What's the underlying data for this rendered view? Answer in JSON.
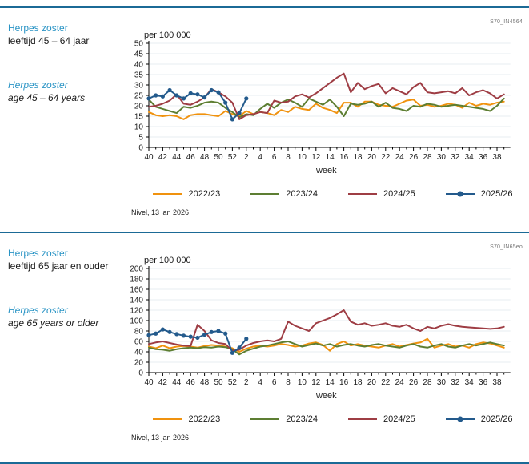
{
  "page": {
    "divider_color": "#1b6a96",
    "heading_color": "#2a94c5"
  },
  "sections": [
    {
      "title_nl": "Herpes zoster",
      "subtitle_nl": "leeftijd 45 – 64 jaar",
      "title_en": "Herpes zoster",
      "subtitle_en": "age 45 – 64 years",
      "code": "S70_IN4564",
      "source": "Nivel, 13 jan 2026",
      "chart_data": {
        "type": "line",
        "title": "per 100 000",
        "xlabel": "week",
        "ylim": [
          0,
          50
        ],
        "ytick_step": 5,
        "grid": "horizontal",
        "legend_position": "bottom",
        "x_categories": [
          "40",
          "41",
          "42",
          "43",
          "44",
          "45",
          "46",
          "47",
          "48",
          "49",
          "50",
          "51",
          "52",
          "1",
          "2",
          "3",
          "4",
          "5",
          "6",
          "7",
          "8",
          "9",
          "10",
          "11",
          "12",
          "13",
          "14",
          "15",
          "16",
          "17",
          "18",
          "19",
          "20",
          "21",
          "22",
          "23",
          "24",
          "25",
          "26",
          "27",
          "28",
          "29",
          "30",
          "31",
          "32",
          "33",
          "34",
          "35",
          "36",
          "37",
          "38",
          "39"
        ],
        "x_major_tick_labels": [
          "40",
          "42",
          "44",
          "46",
          "48",
          "50",
          "52",
          "2",
          "4",
          "6",
          "8",
          "10",
          "12",
          "14",
          "16",
          "18",
          "20",
          "22",
          "24",
          "26",
          "28",
          "30",
          "32",
          "34",
          "36",
          "38"
        ],
        "series": [
          {
            "name": "2022/23",
            "color": "#f0920e",
            "marker": false,
            "values": [
              17,
              15.5,
              15,
              15.5,
              15,
              13.5,
              15.5,
              16,
              16,
              15.5,
              15,
              17.5,
              16,
              15,
              17.5,
              16,
              17,
              16.5,
              15.5,
              18,
              17,
              19.5,
              18.5,
              18,
              21,
              19,
              18,
              16.5,
              21.5,
              21.5,
              19.5,
              22,
              22,
              20.5,
              20,
              19.5,
              21,
              22.5,
              23,
              20,
              20.5,
              19.5,
              20,
              21,
              20.5,
              19,
              21.5,
              20,
              21,
              20.5,
              21.5,
              22
            ]
          },
          {
            "name": "2023/24",
            "color": "#5d7e32",
            "marker": false,
            "values": [
              23,
              19.5,
              18.5,
              17.5,
              16.5,
              19.5,
              19,
              20,
              21.5,
              22,
              21.5,
              19,
              17,
              14.5,
              16,
              15.5,
              18.5,
              21,
              19,
              21.5,
              23,
              21.5,
              19.5,
              23.5,
              22,
              20.5,
              23,
              19.5,
              15,
              21,
              20.5,
              21,
              22,
              19.5,
              21.5,
              19,
              18.5,
              17.5,
              20,
              19.5,
              21,
              20.5,
              19.5,
              20,
              20.5,
              20,
              19.5,
              19,
              18.5,
              17.5,
              20,
              23.5
            ]
          },
          {
            "name": "2024/25",
            "color": "#9e3d44",
            "marker": false,
            "values": [
              19.5,
              20,
              21,
              22.5,
              25.5,
              21,
              20.5,
              22,
              24,
              28,
              26.5,
              24.5,
              21.5,
              13.5,
              15.5,
              16,
              17,
              16.5,
              22.5,
              21.5,
              22,
              24.5,
              25.5,
              24,
              26,
              28.5,
              31,
              33.5,
              35.5,
              26.5,
              31,
              28,
              29.5,
              30.5,
              26,
              28.5,
              27,
              25.5,
              29,
              31,
              26.5,
              26,
              26.5,
              27,
              26,
              28.5,
              25,
              26.5,
              27.5,
              26,
              23.5,
              25.5
            ]
          },
          {
            "name": "2025/26",
            "color": "#235a8c",
            "marker": true,
            "values": [
              23.5,
              25,
              24.5,
              27.5,
              25,
              23.5,
              26,
              25.5,
              24,
              27.5,
              26.5,
              21.5,
              13.5,
              16.5,
              23.5
            ]
          }
        ]
      }
    },
    {
      "title_nl": "Herpes zoster",
      "subtitle_nl": "leeftijd 65 jaar en ouder",
      "title_en": "Herpes zoster",
      "subtitle_en": "age 65 years or older",
      "code": "S70_IN65eo",
      "source": "Nivel, 13 jan 2026",
      "chart_data": {
        "type": "line",
        "title": "per 100 000",
        "xlabel": "week",
        "ylim": [
          0,
          200
        ],
        "ytick_step": 20,
        "grid": "horizontal",
        "legend_position": "bottom",
        "x_categories": [
          "40",
          "41",
          "42",
          "43",
          "44",
          "45",
          "46",
          "47",
          "48",
          "49",
          "50",
          "51",
          "52",
          "1",
          "2",
          "3",
          "4",
          "5",
          "6",
          "7",
          "8",
          "9",
          "10",
          "11",
          "12",
          "13",
          "14",
          "15",
          "16",
          "17",
          "18",
          "19",
          "20",
          "21",
          "22",
          "23",
          "24",
          "25",
          "26",
          "27",
          "28",
          "29",
          "30",
          "31",
          "32",
          "33",
          "34",
          "35",
          "36",
          "37",
          "38",
          "39"
        ],
        "x_major_tick_labels": [
          "40",
          "42",
          "44",
          "46",
          "48",
          "50",
          "52",
          "2",
          "4",
          "6",
          "8",
          "10",
          "12",
          "14",
          "16",
          "18",
          "20",
          "22",
          "24",
          "26",
          "28",
          "30",
          "32",
          "34",
          "36",
          "38"
        ],
        "series": [
          {
            "name": "2022/23",
            "color": "#f0920e",
            "marker": false,
            "values": [
              50,
              47,
              52,
              47,
              50,
              51,
              50,
              48,
              51,
              53,
              52,
              50,
              47,
              40,
              46,
              50,
              52,
              50,
              52,
              55,
              53,
              50,
              52,
              56,
              58,
              53,
              42,
              55,
              60,
              52,
              55,
              52,
              50,
              48,
              52,
              55,
              50,
              53,
              56,
              58,
              65,
              48,
              52,
              55,
              50,
              52,
              48,
              55,
              58,
              56,
              52,
              48
            ]
          },
          {
            "name": "2023/24",
            "color": "#5d7e32",
            "marker": false,
            "values": [
              48,
              45,
              44,
              42,
              45,
              47,
              48,
              47,
              49,
              48,
              50,
              49,
              45,
              35,
              42,
              46,
              50,
              52,
              55,
              58,
              60,
              55,
              50,
              53,
              56,
              52,
              55,
              50,
              53,
              55,
              52,
              50,
              53,
              55,
              52,
              50,
              48,
              52,
              55,
              50,
              48,
              52,
              55,
              50,
              48,
              52,
              55,
              52,
              55,
              58,
              55,
              52
            ]
          },
          {
            "name": "2024/25",
            "color": "#9e3d44",
            "marker": false,
            "values": [
              55,
              58,
              60,
              57,
              54,
              52,
              51,
              92,
              80,
              62,
              57,
              55,
              42,
              44,
              52,
              57,
              60,
              62,
              60,
              65,
              98,
              90,
              85,
              80,
              95,
              100,
              105,
              112,
              120,
              98,
              92,
              95,
              90,
              92,
              95,
              90,
              88,
              92,
              85,
              80,
              88,
              85,
              90,
              93,
              90,
              88,
              87,
              86,
              85,
              84,
              85,
              88
            ]
          },
          {
            "name": "2025/26",
            "color": "#235a8c",
            "marker": true,
            "values": [
              72,
              75,
              83,
              78,
              74,
              71,
              69,
              67,
              73,
              78,
              80,
              75,
              38,
              48,
              65
            ]
          }
        ]
      }
    }
  ]
}
